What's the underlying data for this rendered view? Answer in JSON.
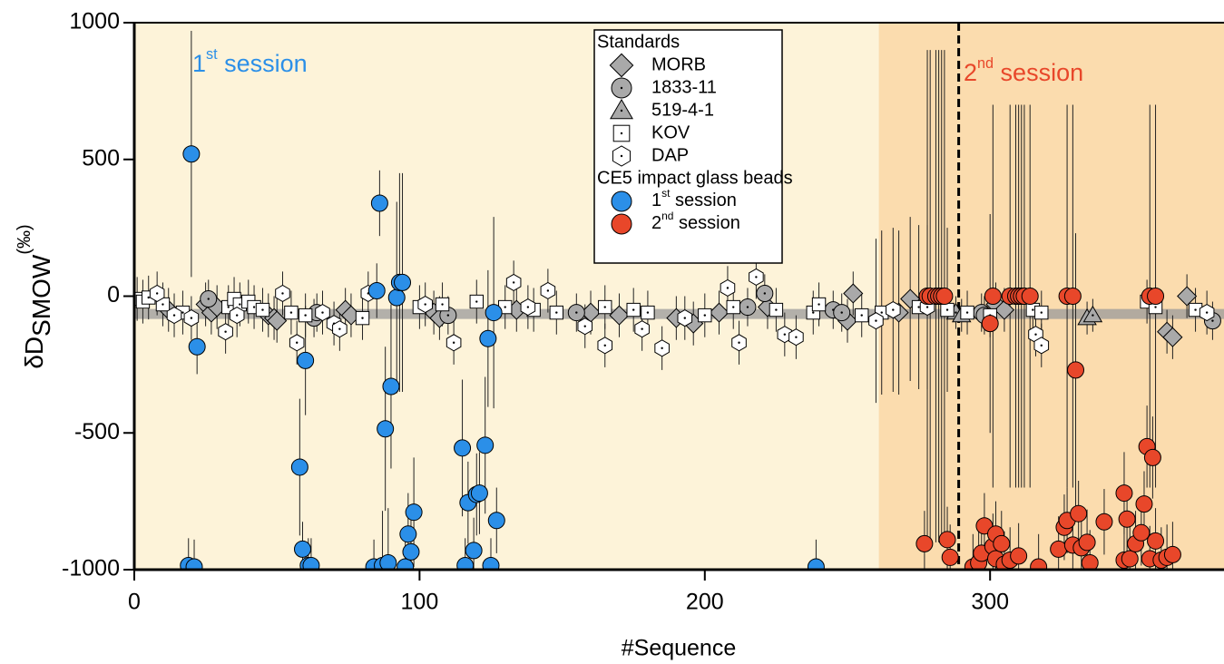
{
  "chart_data": {
    "type": "scatter",
    "xlabel": "#Sequence",
    "ylabel": "δDSMOW(‰)",
    "xlim": [
      0,
      382
    ],
    "ylim": [
      -1000,
      1000
    ],
    "xticks": [
      0,
      100,
      200,
      300
    ],
    "yticks": [
      -1000,
      -500,
      0,
      500,
      1000
    ],
    "regions": [
      {
        "xlim": [
          0,
          261
        ],
        "color": "#fdf3d9"
      },
      {
        "xlim": [
          261,
          382
        ],
        "color": "#fbdcae"
      }
    ],
    "vline": 289,
    "reference_band": -65,
    "annotations": [
      {
        "text": "1st session",
        "color": "#2b8fe8"
      },
      {
        "text": "2nd session",
        "color": "#e8472a"
      }
    ],
    "legend_titles": [
      "Standards",
      "CE5 impact glass beads"
    ],
    "series": [
      {
        "name": "MORB",
        "marker": "diamond",
        "color": "#a9a9a9",
        "x": [
          12,
          25,
          27,
          29,
          47,
          49,
          50,
          74,
          76,
          105,
          107,
          134,
          160,
          170,
          190,
          196,
          205,
          222,
          250,
          252,
          268,
          272,
          302,
          305,
          362,
          364,
          369
        ],
        "values": [
          -50,
          -30,
          -60,
          -40,
          -70,
          -80,
          -90,
          -50,
          -70,
          -60,
          -80,
          -50,
          -60,
          -70,
          -80,
          -100,
          -60,
          -40,
          -90,
          10,
          -60,
          -10,
          -30,
          -50,
          -130,
          -150,
          0
        ],
        "errors": [
          80,
          80,
          80,
          80,
          80,
          80,
          80,
          80,
          80,
          80,
          80,
          80,
          80,
          80,
          80,
          80,
          80,
          80,
          80,
          80,
          300,
          300,
          80,
          80,
          80,
          80,
          80
        ]
      },
      {
        "name": "1833-11",
        "marker": "circle-dot",
        "color": "#a9a9a9",
        "x": [
          26,
          63,
          64,
          110,
          155,
          215,
          221,
          245,
          248,
          297,
          298,
          378
        ],
        "values": [
          -10,
          -80,
          -60,
          -70,
          -60,
          -40,
          10,
          -50,
          -60,
          -60,
          -70,
          -90
        ],
        "errors": [
          70,
          70,
          70,
          70,
          70,
          70,
          70,
          70,
          70,
          70,
          70,
          70
        ]
      },
      {
        "name": "519-4-1",
        "marker": "triangle",
        "color": "#a9a9a9",
        "x": [
          288,
          290,
          334,
          336
        ],
        "values": [
          -60,
          -70,
          -80,
          -70
        ],
        "errors": [
          60,
          60,
          60,
          60
        ]
      },
      {
        "name": "KOV",
        "marker": "square",
        "color": "#ffffff",
        "x": [
          1,
          3,
          5,
          10,
          17,
          33,
          35,
          37,
          40,
          42,
          45,
          55,
          60,
          80,
          100,
          108,
          120,
          130,
          140,
          148,
          165,
          175,
          180,
          200,
          210,
          225,
          238,
          240,
          255,
          262,
          275,
          285,
          292,
          300,
          315,
          318,
          355,
          358,
          372
        ],
        "values": [
          -10,
          -20,
          -5,
          -30,
          -60,
          -40,
          -10,
          -30,
          -20,
          -40,
          -50,
          -60,
          -70,
          -80,
          -40,
          -30,
          -20,
          -40,
          -50,
          -60,
          -40,
          -50,
          -60,
          -70,
          -40,
          -50,
          -60,
          -30,
          -70,
          -60,
          -40,
          -50,
          -60,
          -70,
          -50,
          -60,
          -20,
          -40,
          -50
        ],
        "errors": [
          80,
          80,
          80,
          80,
          80,
          80,
          80,
          80,
          80,
          80,
          80,
          80,
          80,
          80,
          80,
          80,
          80,
          80,
          80,
          80,
          80,
          80,
          80,
          80,
          80,
          80,
          80,
          80,
          80,
          300,
          300,
          300,
          80,
          80,
          80,
          80,
          80,
          80,
          80
        ]
      },
      {
        "name": "DAP",
        "marker": "hexagon",
        "color": "#ffffff",
        "x": [
          8,
          14,
          20,
          32,
          36,
          52,
          57,
          66,
          70,
          72,
          82,
          102,
          112,
          133,
          138,
          145,
          158,
          165,
          178,
          185,
          193,
          208,
          212,
          218,
          228,
          232,
          260,
          266,
          278,
          316,
          318,
          376
        ],
        "values": [
          10,
          -70,
          -80,
          -130,
          -70,
          10,
          -170,
          -60,
          -100,
          -120,
          10,
          -30,
          -170,
          50,
          -40,
          20,
          -110,
          -180,
          -120,
          -190,
          -80,
          30,
          -170,
          70,
          -140,
          -150,
          -90,
          -50,
          -40,
          -140,
          -180,
          -60
        ],
        "errors": [
          80,
          80,
          80,
          80,
          80,
          80,
          80,
          80,
          80,
          80,
          80,
          80,
          80,
          80,
          80,
          80,
          80,
          80,
          80,
          80,
          80,
          80,
          80,
          80,
          80,
          80,
          300,
          300,
          300,
          80,
          80,
          80
        ]
      },
      {
        "name": "1st session",
        "marker": "circle",
        "color": "#2b8fe8",
        "x": [
          19,
          20,
          21,
          22,
          58,
          59,
          60,
          61,
          62,
          84,
          85,
          86,
          87,
          88,
          89,
          90,
          92,
          93,
          94,
          95,
          96,
          97,
          98,
          115,
          116,
          117,
          119,
          120,
          121,
          123,
          124,
          125,
          126,
          127,
          239
        ],
        "values": [
          -985,
          520,
          -990,
          -185,
          -625,
          -925,
          -235,
          -985,
          -985,
          -990,
          20,
          340,
          -985,
          -485,
          -975,
          -330,
          -5,
          50,
          50,
          -990,
          -870,
          -935,
          -790,
          -555,
          -985,
          -755,
          -930,
          -725,
          -720,
          -545,
          -155,
          -985,
          -60,
          -820,
          -990
        ],
        "errors": [
          100,
          450,
          100,
          100,
          250,
          100,
          200,
          100,
          100,
          100,
          100,
          120,
          200,
          300,
          200,
          300,
          350,
          400,
          400,
          100,
          150,
          120,
          200,
          250,
          100,
          150,
          120,
          150,
          150,
          250,
          250,
          100,
          350,
          120,
          100
        ]
      },
      {
        "name": "2nd session",
        "marker": "circle",
        "color": "#e8472a",
        "x": [
          278,
          279,
          281,
          282,
          283,
          284,
          301,
          307,
          309,
          310,
          311,
          312,
          314,
          327,
          329,
          356,
          358,
          300,
          330,
          277,
          285,
          286,
          294,
          296,
          297,
          298,
          301,
          302,
          302,
          304,
          305,
          307,
          310,
          317,
          324,
          326,
          327,
          329,
          331,
          332,
          334,
          335,
          340,
          347,
          347,
          348,
          349,
          351,
          353,
          354,
          355,
          356,
          357,
          358,
          360,
          362,
          364
        ],
        "values": [
          0,
          0,
          0,
          0,
          0,
          0,
          0,
          0,
          0,
          0,
          0,
          0,
          0,
          0,
          0,
          0,
          0,
          -100,
          -270,
          -905,
          -890,
          -955,
          -990,
          -975,
          -940,
          -840,
          -915,
          -870,
          -960,
          -905,
          -980,
          -965,
          -950,
          -990,
          -925,
          -845,
          -820,
          -910,
          -795,
          -920,
          -900,
          -975,
          -825,
          -720,
          -965,
          -815,
          -960,
          -905,
          -865,
          -760,
          -550,
          -960,
          -590,
          -895,
          -965,
          -955,
          -945
        ],
        "errors": [
          900,
          900,
          900,
          900,
          900,
          900,
          700,
          700,
          700,
          700,
          700,
          700,
          700,
          700,
          700,
          700,
          700,
          400,
          500,
          120,
          120,
          120,
          120,
          120,
          120,
          120,
          120,
          120,
          120,
          120,
          120,
          120,
          120,
          120,
          120,
          120,
          120,
          120,
          120,
          120,
          120,
          120,
          120,
          150,
          120,
          120,
          120,
          120,
          120,
          120,
          150,
          120,
          150,
          120,
          120,
          120,
          120
        ]
      }
    ]
  }
}
